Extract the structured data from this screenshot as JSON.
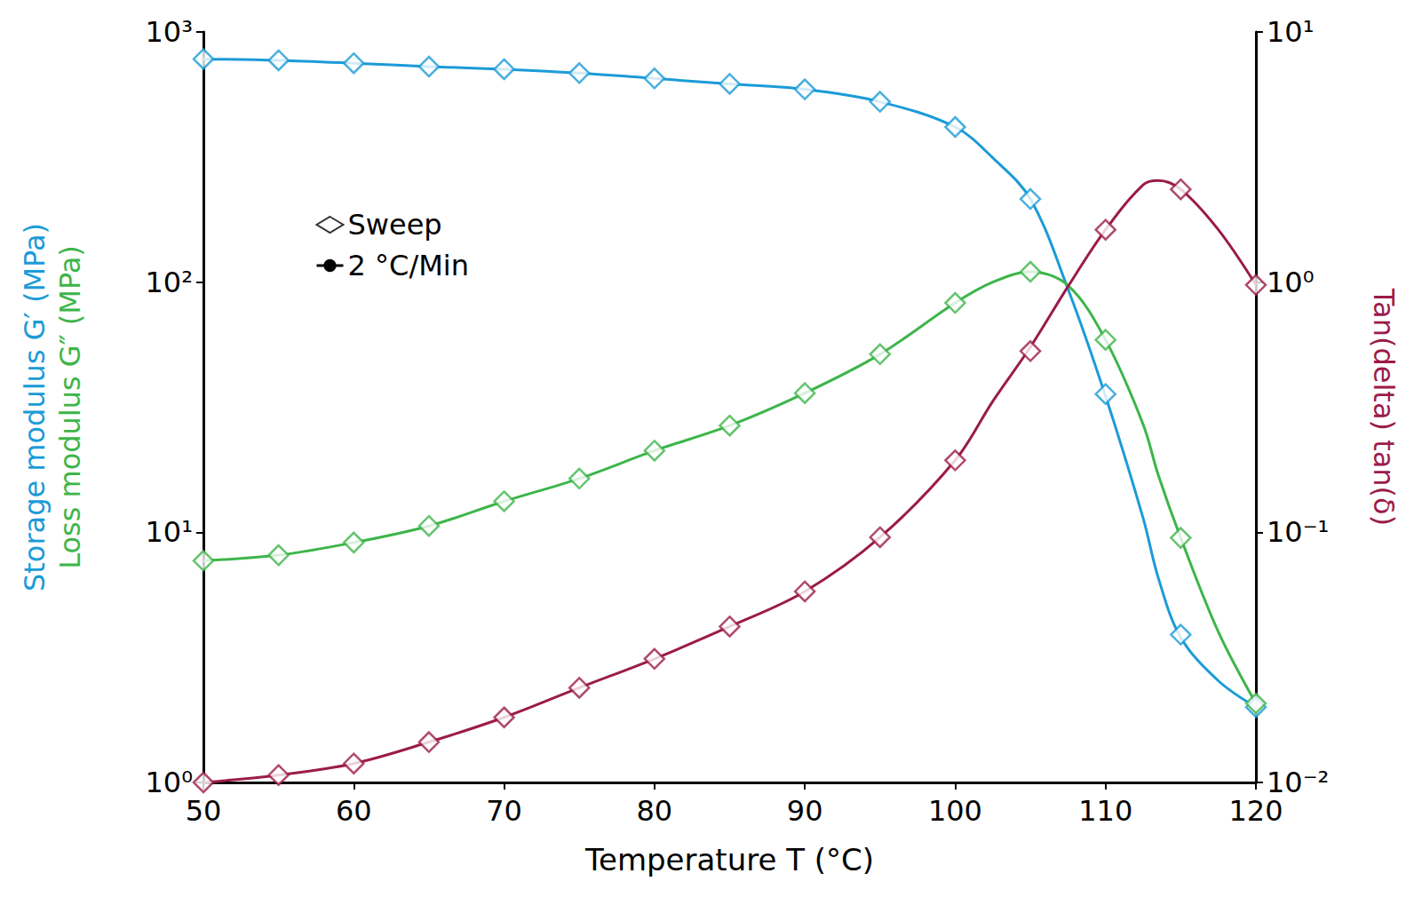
{
  "chart_data": {
    "type": "line",
    "xlabel": "Temperature T (°C)",
    "y_labels": [
      {
        "text": "Storage modulus G′ (MPa)",
        "color": "#1b9bd7"
      },
      {
        "text": "Loss modulus G″ (MPa)",
        "color": "#3db54a"
      }
    ],
    "y2_label": {
      "text": "Tan(delta) tan(δ)",
      "color": "#9b1b4a"
    },
    "xlim": [
      50,
      120
    ],
    "xticks": [
      50,
      60,
      70,
      80,
      90,
      100,
      110,
      120
    ],
    "ylim": [
      1,
      1000
    ],
    "yticks": [
      {
        "value": 1,
        "label": "10⁰"
      },
      {
        "value": 10,
        "label": "10¹"
      },
      {
        "value": 100,
        "label": "10²"
      },
      {
        "value": 1000,
        "label": "10³"
      }
    ],
    "y2lim": [
      0.01,
      10
    ],
    "y2ticks": [
      {
        "value": 0.01,
        "label": "10⁻²"
      },
      {
        "value": 0.1,
        "label": "10⁻¹"
      },
      {
        "value": 1,
        "label": "10⁰"
      },
      {
        "value": 10,
        "label": "10¹"
      }
    ],
    "log": "y",
    "grid": false,
    "legend": "upper left",
    "series": [
      {
        "name": "Sweep",
        "type": "scatter",
        "marker": "diamond",
        "color": "#1b9bd7",
        "axis": "y",
        "x": [
          50,
          55,
          60,
          65,
          70,
          75,
          80,
          85,
          90,
          95,
          100,
          105,
          110,
          115,
          120
        ],
        "values": [
          780,
          770,
          750,
          727,
          710,
          685,
          652,
          620,
          590,
          526,
          417,
          215,
          35.7,
          3.9,
          2.0
        ]
      },
      {
        "name": "2 °C/Min",
        "type": "line",
        "line_style": "solid",
        "color": "#1b9bd7",
        "axis": "y",
        "x": [
          50,
          55,
          60,
          65,
          70,
          75,
          80,
          85,
          90,
          95,
          100,
          102.5,
          105,
          107.5,
          110,
          112.5,
          113.5,
          115,
          117.5,
          120
        ],
        "values": [
          780,
          770,
          750,
          727,
          710,
          685,
          652,
          620,
          590,
          526,
          417,
          314,
          215,
          94,
          35,
          11.4,
          6.6,
          3.8,
          2.55,
          2.0
        ]
      },
      {
        "name": "Sweep",
        "type": "scatter",
        "marker": "diamond",
        "color": "#3db54a",
        "axis": "y",
        "x": [
          50,
          55,
          60,
          65,
          70,
          75,
          80,
          85,
          90,
          95,
          100,
          105,
          110,
          115,
          120
        ],
        "values": [
          7.7,
          8.1,
          9.1,
          10.6,
          13.3,
          16.4,
          21.2,
          26.7,
          36,
          51.5,
          82.6,
          110,
          58.8,
          9.5,
          2.07
        ]
      },
      {
        "name": "2 °C/Min",
        "type": "line",
        "line_style": "solid",
        "color": "#3db54a",
        "axis": "y",
        "x": [
          50,
          55,
          60,
          65,
          70,
          75,
          80,
          85,
          90,
          95,
          100,
          102.5,
          105,
          107.5,
          110,
          112.5,
          113.5,
          115,
          117.5,
          120
        ],
        "values": [
          7.7,
          8.1,
          9.1,
          10.6,
          13.3,
          16.4,
          21.2,
          26.7,
          36,
          51.5,
          82.6,
          100,
          110,
          97,
          58.8,
          27,
          17,
          9.5,
          4.0,
          2.07
        ]
      },
      {
        "name": "Sweep",
        "type": "scatter",
        "marker": "diamond",
        "color": "#9b1b4a",
        "axis": "y2",
        "x": [
          50,
          55,
          60,
          65,
          70,
          75,
          80,
          85,
          90,
          95,
          100,
          105,
          110,
          115,
          120
        ],
        "values": [
          0.01,
          0.0107,
          0.0119,
          0.0145,
          0.0182,
          0.0239,
          0.0312,
          0.042,
          0.058,
          0.0955,
          0.194,
          0.53,
          1.62,
          2.35,
          0.975
        ]
      },
      {
        "name": "2 °C/Min",
        "type": "line",
        "line_style": "solid",
        "color": "#9b1b4a",
        "axis": "y2",
        "x": [
          50,
          55,
          60,
          65,
          70,
          75,
          80,
          85,
          90,
          95,
          100,
          102.5,
          105,
          107.5,
          110,
          112.5,
          113.5,
          115,
          117.5,
          120
        ],
        "values": [
          0.01,
          0.0107,
          0.0119,
          0.0145,
          0.0182,
          0.0239,
          0.0312,
          0.042,
          0.058,
          0.0955,
          0.194,
          0.334,
          0.55,
          0.96,
          1.62,
          2.45,
          2.55,
          2.35,
          1.62,
          0.975
        ]
      }
    ]
  }
}
